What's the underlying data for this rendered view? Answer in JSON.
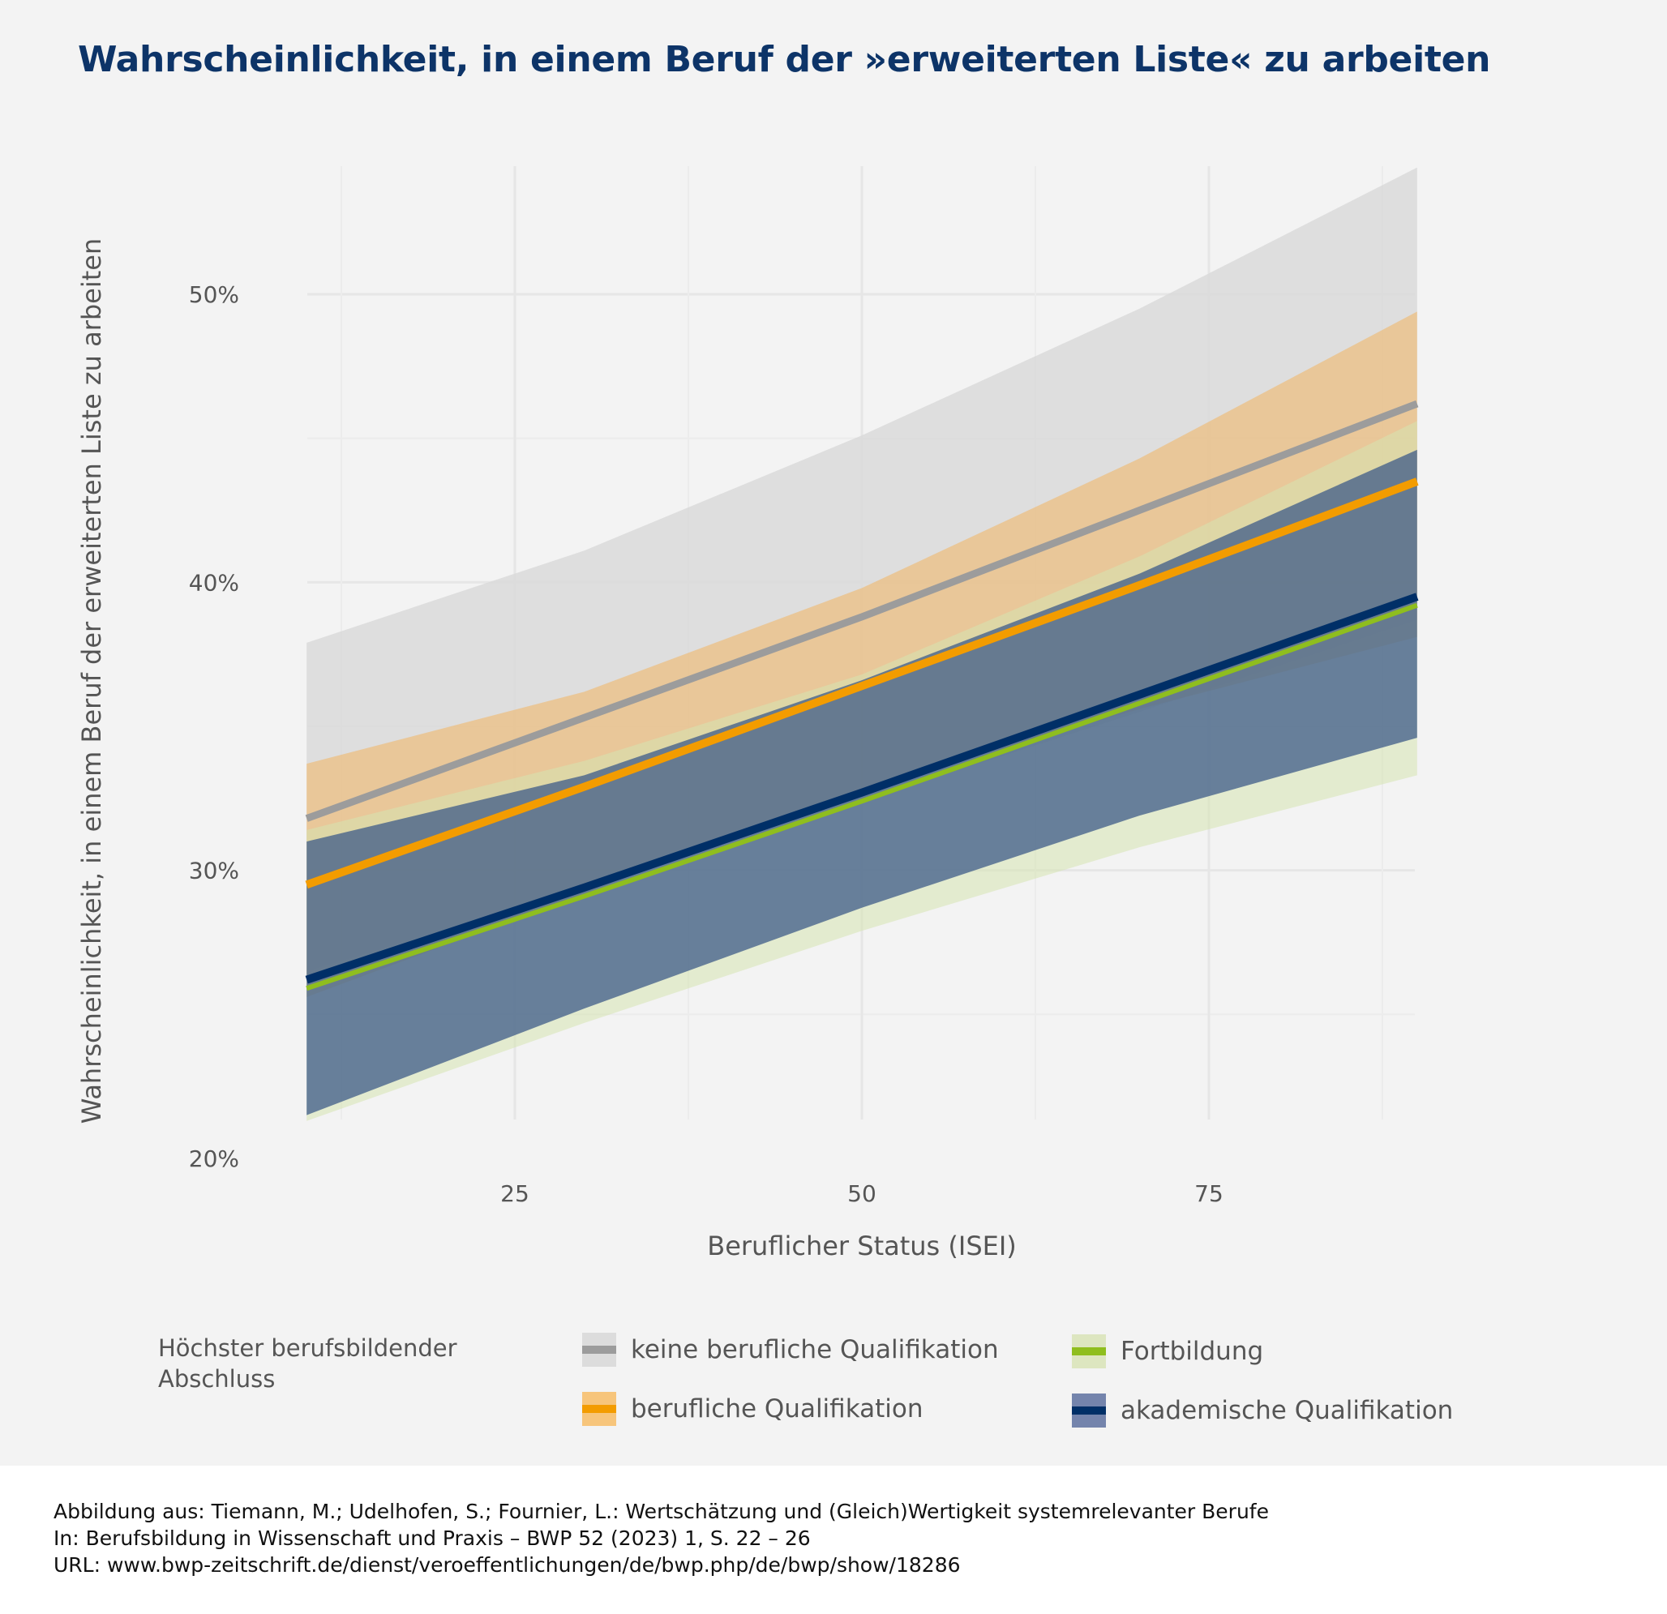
{
  "title": "Wahrscheinlichkeit, in einem Beruf der »erweiterten Liste« zu arbeiten",
  "legend": {
    "title": "Höchster berufsbildender Abschluss",
    "items": [
      {
        "label": "keine berufliche Qualifikation",
        "band_color": "#dcdcdc",
        "line_color": "#9c9c9c"
      },
      {
        "label": "berufliche Qualifikation",
        "band_color": "#f7c57b",
        "line_color": "#f39c00"
      },
      {
        "label": "Fortbildung",
        "band_color": "#dde6c0",
        "line_color": "#8fbe1e"
      },
      {
        "label": "akademische Qualifikation",
        "band_color": "#7484ac",
        "line_color": "#002f67"
      }
    ]
  },
  "footer": {
    "line1": "Abbildung aus: Tiemann, M.; Udelhofen, S.; Fournier, L.: Wertschätzung und (Gleich)Wertigkeit systemrelevanter Berufe",
    "line2": "In: Berufsbildung in Wissenschaft und Praxis – BWP 52 (2023) 1, S. 22 – 26",
    "line3": "URL: www.bwp-zeitschrift.de/dienst/veroeffentlichungen/de/bwp.php/de/bwp/show/18286"
  },
  "chart_data": {
    "type": "line",
    "title": "Wahrscheinlichkeit, in einem Beruf der »erweiterten Liste« zu arbeiten",
    "xlabel": "Beruflicher Status (ISEI)",
    "ylabel": "Wahrscheinlichkeit, in einem Beruf der erweiterten Liste zu arbeiten",
    "xlim": [
      10,
      90
    ],
    "ylim": [
      20,
      54.5
    ],
    "x_ticks": [
      25,
      50,
      75
    ],
    "x_tick_labels": [
      "25",
      "50",
      "75"
    ],
    "y_ticks": [
      20,
      30,
      40,
      50
    ],
    "y_tick_labels": [
      "20%",
      "30%",
      "40%",
      "50%"
    ],
    "grid": true,
    "legend_position": "bottom",
    "x": [
      10,
      30,
      50,
      70,
      90
    ],
    "series": [
      {
        "name": "keine berufliche Qualifikation",
        "color": "#9c9c9c",
        "band_color": "#d9d9d9",
        "values": [
          31.8,
          35.3,
          38.8,
          42.5,
          46.2
        ],
        "lower": [
          26.5,
          29.4,
          32.4,
          35.5,
          38.7
        ],
        "upper": [
          37.9,
          41.1,
          45.1,
          49.5,
          54.4
        ]
      },
      {
        "name": "berufliche Qualifikation",
        "color": "#f39c00",
        "band_color": "#f0b86a",
        "values": [
          29.5,
          32.9,
          36.4,
          39.9,
          43.5
        ],
        "lower": [
          25.6,
          29.2,
          32.8,
          35.6,
          38.1
        ],
        "upper": [
          33.7,
          36.2,
          39.8,
          44.3,
          49.4
        ]
      },
      {
        "name": "Fortbildung",
        "color": "#8fbe1e",
        "band_color": "#d6e3b0",
        "values": [
          25.9,
          29.1,
          32.4,
          35.8,
          39.2
        ],
        "lower": [
          21.3,
          24.7,
          27.9,
          30.8,
          33.3
        ],
        "upper": [
          31.4,
          33.8,
          36.8,
          40.9,
          45.6
        ]
      },
      {
        "name": "akademische Qualifikation",
        "color": "#002f67",
        "band_color": "#3e5b88",
        "values": [
          26.2,
          29.4,
          32.7,
          36.1,
          39.5
        ],
        "lower": [
          21.5,
          25.2,
          28.7,
          31.9,
          34.6
        ],
        "upper": [
          31.0,
          33.3,
          36.6,
          40.3,
          44.6
        ]
      }
    ]
  }
}
